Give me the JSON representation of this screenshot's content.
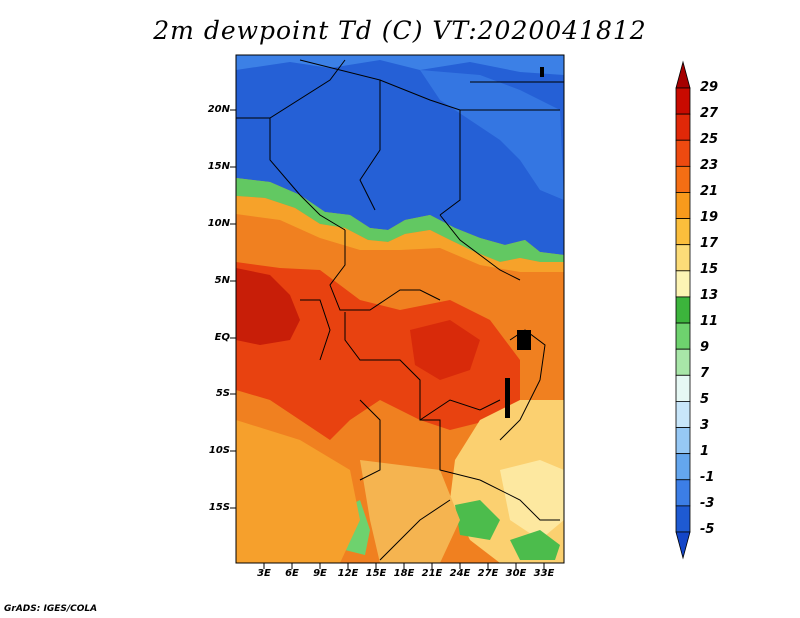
{
  "title": "2m dewpoint Td (C) VT:2020041812",
  "credit": "GrADS: IGES/COLA",
  "map": {
    "lat_labels": [
      "20N",
      "15N",
      "10N",
      "5N",
      "EQ",
      "5S",
      "10S",
      "15S"
    ],
    "lon_labels": [
      "3E",
      "6E",
      "9E",
      "12E",
      "15E",
      "18E",
      "21E",
      "24E",
      "27E",
      "30E",
      "33E"
    ]
  },
  "colorbar": {
    "labels": [
      "29",
      "27",
      "25",
      "23",
      "21",
      "19",
      "17",
      "15",
      "13",
      "11",
      "9",
      "7",
      "5",
      "3",
      "1",
      "-1",
      "-3",
      "-5"
    ],
    "colors": [
      "#a50000",
      "#c80a00",
      "#e02808",
      "#ee4a10",
      "#f56e14",
      "#f89a1c",
      "#fbbe3c",
      "#fcdc78",
      "#fdf4b4",
      "#3cb43c",
      "#6ed26e",
      "#a8e6a8",
      "#e6f8f4",
      "#c8e6fa",
      "#96c8f5",
      "#64a6ee",
      "#3c7ee6",
      "#1e5ad2",
      "#1446c8"
    ]
  }
}
